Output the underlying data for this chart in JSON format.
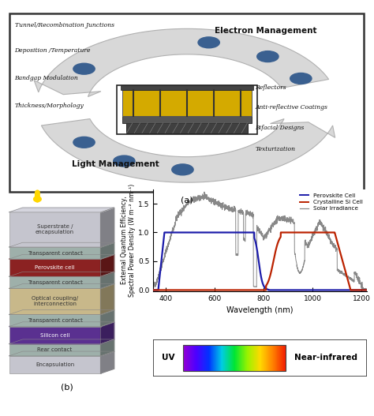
{
  "fig_width": 4.74,
  "fig_height": 5.27,
  "dpi": 100,
  "panel_a": {
    "left_labels": [
      "Tunnel/Recombination Junctions",
      "Deposition /Temperature",
      "Bandgap Modulation",
      "Thickness/Morphology"
    ],
    "right_labels": [
      "Reflectors",
      "Anti-reflective Coatings",
      "Bifacial Designs",
      "Texturization"
    ],
    "electron_text": "Electron Management",
    "light_text": "Light Management"
  },
  "panel_b_left": {
    "layers": [
      {
        "label": "Superstrate /\nencapsulation",
        "color": "#c5c5ce",
        "height": 1.6,
        "text_color": "#333333"
      },
      {
        "label": "Transparent contact",
        "color": "#9eb0aa",
        "height": 0.55,
        "text_color": "#333333"
      },
      {
        "label": "Perovskite cell",
        "color": "#8b2222",
        "height": 0.8,
        "text_color": "#ffffff"
      },
      {
        "label": "Transparent contact",
        "color": "#9eb0aa",
        "height": 0.55,
        "text_color": "#333333"
      },
      {
        "label": "Optical coupling/\ninterconnection",
        "color": "#c8b88a",
        "height": 1.2,
        "text_color": "#333333"
      },
      {
        "label": "Transparent contact",
        "color": "#9eb0aa",
        "height": 0.55,
        "text_color": "#333333"
      },
      {
        "label": "Silicon cell",
        "color": "#5a3090",
        "height": 0.8,
        "text_color": "#ffffff"
      },
      {
        "label": "Rear contact",
        "color": "#9eb0aa",
        "height": 0.55,
        "text_color": "#333333"
      },
      {
        "label": "Encapsulation",
        "color": "#c5c5ce",
        "height": 0.8,
        "text_color": "#333333"
      }
    ]
  },
  "panel_b_right": {
    "ylabel1": "External Quantum Efficiency,",
    "ylabel2": "Spectral Power Density (W m⁻² nm⁻¹)",
    "xlabel": "Wavelength (nm)",
    "xlim": [
      350,
      1220
    ],
    "ylim": [
      -0.02,
      1.75
    ],
    "yticks": [
      0.0,
      0.5,
      1.0,
      1.5
    ],
    "xticks": [
      400,
      600,
      800,
      1000,
      1200
    ],
    "perov_color": "#1c1caa",
    "si_color": "#bb2200",
    "solar_color": "#888888"
  }
}
